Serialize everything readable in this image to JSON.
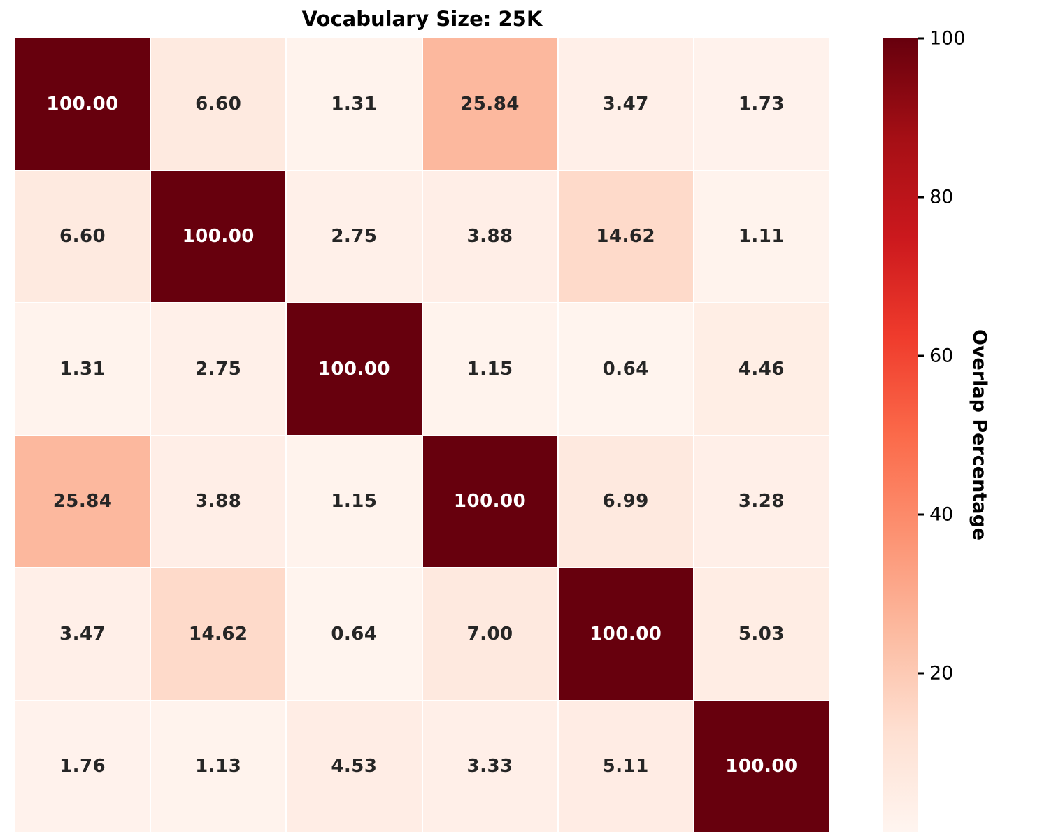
{
  "page": {
    "background_color": "#ffffff"
  },
  "chart_data": {
    "type": "heatmap",
    "title": "Vocabulary Size: 25K",
    "rows": 6,
    "cols": 6,
    "x_tick_labels": [],
    "y_tick_labels": [],
    "values": [
      [
        100.0,
        6.6,
        1.31,
        25.84,
        3.47,
        1.73
      ],
      [
        6.6,
        100.0,
        2.75,
        3.88,
        14.62,
        1.11
      ],
      [
        1.31,
        2.75,
        100.0,
        1.15,
        0.64,
        4.46
      ],
      [
        25.84,
        3.88,
        1.15,
        100.0,
        6.99,
        3.28
      ],
      [
        3.47,
        14.62,
        0.64,
        7.0,
        100.0,
        5.03
      ],
      [
        1.76,
        1.13,
        4.53,
        3.33,
        5.11,
        100.0
      ]
    ],
    "annotation_decimals": 2,
    "vmin": 0,
    "vmax": 100,
    "colormap": "Reds",
    "colormap_stops": [
      "#fff5f0",
      "#fee0d2",
      "#fcbba1",
      "#fc9272",
      "#fb6a4a",
      "#ef3b2c",
      "#cb181d",
      "#a50f15",
      "#67000d"
    ],
    "cell_text_color_dark": "#262626",
    "cell_text_color_light": "#ffffff",
    "grid_gap_color": "#ffffff",
    "legend_position": "right",
    "colorbar": {
      "label": "Overlap Percentage",
      "ticks": [
        100,
        80,
        60,
        40,
        20
      ]
    }
  }
}
